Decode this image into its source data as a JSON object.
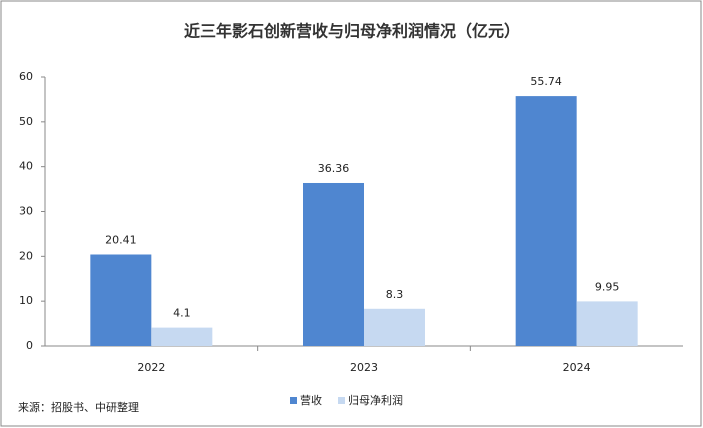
{
  "chart_data": {
    "type": "bar",
    "title": "近三年影石创新营收与归母净利润情况（亿元）",
    "categories": [
      "2022",
      "2023",
      "2024"
    ],
    "series": [
      {
        "name": "营收",
        "color": "#4f86d0",
        "values": [
          20.41,
          36.36,
          55.74
        ]
      },
      {
        "name": "归母净利润",
        "color": "#c6d9f1",
        "values": [
          4.1,
          8.3,
          9.95
        ]
      }
    ],
    "ylim": [
      0,
      60
    ],
    "yticks": [
      0,
      10,
      20,
      30,
      40,
      50,
      60
    ],
    "grid": false,
    "source": "来源：招股书、中研整理"
  }
}
